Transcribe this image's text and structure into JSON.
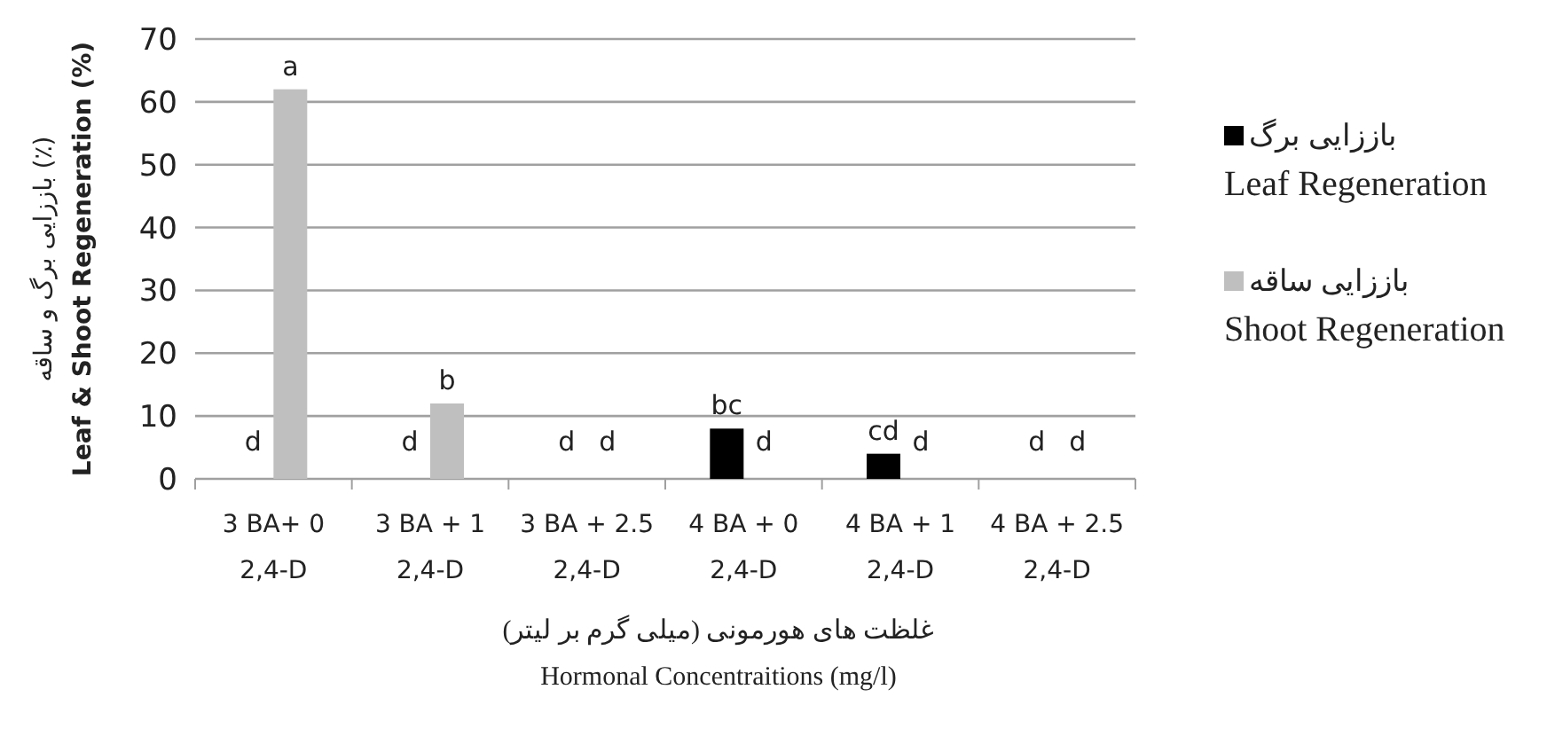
{
  "chart_data": {
    "type": "bar",
    "xlabel": "غلظت های هورمونی (میلی گرم بر لیتر)\nHormonal Concentraitions (mg/l)",
    "ylabel": "باززایی برگ و ساقه (٪)\nLeaf & Shoot Regeneration (%)",
    "categories": [
      "3 BA+ 0\n2,4-D",
      "3 BA + 1\n2,4-D",
      "3 BA + 2.5\n2,4-D",
      "4 BA + 0\n2,4-D",
      "4 BA + 1\n2,4-D",
      "4 BA + 2.5\n2,4-D"
    ],
    "series": [
      {
        "name": "باززایی برگ\nLeaf Regeneration",
        "color": "#000000",
        "values": [
          0,
          0,
          0,
          8,
          4,
          0
        ],
        "value_labels": [
          "d",
          "d",
          "d",
          "bc",
          "cd",
          "d"
        ]
      },
      {
        "name": "باززایی ساقه\nShoot Regeneration",
        "color": "#bfbfbf",
        "values": [
          62,
          12,
          0,
          0,
          0,
          0
        ],
        "value_labels": [
          "a",
          "b",
          "d",
          "d",
          "d",
          "d"
        ]
      }
    ],
    "ylim": [
      0,
      70
    ],
    "yticks": [
      0,
      10,
      20,
      30,
      40,
      50,
      60,
      70
    ],
    "grid": "y",
    "legend": "right"
  }
}
